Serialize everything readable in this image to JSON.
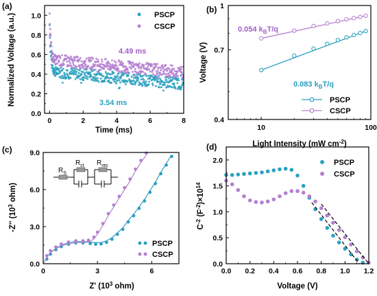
{
  "colors": {
    "pscp": "#2aa0c0",
    "cscp": "#b47fd0",
    "fit": "#000000"
  },
  "chart_data": [
    {
      "panel": "(a)",
      "type": "scatter",
      "xlabel": "Time (ms)",
      "ylabel": "Normalized Voltage (a.u.)",
      "xlim": [
        -0.3,
        8
      ],
      "ylim": [
        0,
        1.1
      ],
      "xticks": [
        "0",
        "2",
        "4",
        "6",
        "8"
      ],
      "yticks": [
        "0.0",
        "0.2",
        "0.4",
        "0.6",
        "0.8",
        "1.0"
      ],
      "legend": [
        "PSCP",
        "CSCP"
      ],
      "legend_position": "top-right",
      "annotations": [
        "4.49 ms",
        "3.54 ms"
      ],
      "series": [
        {
          "name": "PSCP",
          "lifetime_ms": 3.54,
          "start": 0.9,
          "plateau": 0.31,
          "level_at_0_5ms": 0.42,
          "level_at_8ms": 0.3
        },
        {
          "name": "CSCP",
          "lifetime_ms": 4.49,
          "start": 1.0,
          "plateau": 0.44,
          "level_at_0_5ms": 0.54,
          "level_at_8ms": 0.42
        }
      ]
    },
    {
      "panel": "(b)",
      "type": "line",
      "xlabel": "Light Intensity (mW cm",
      "xlabel_sup": "-2",
      "xlabel_end": ")",
      "ylabel": "Voltage (V)",
      "xscale": "log",
      "yscale": "log",
      "xlim": [
        5,
        100
      ],
      "ylim": [
        0.4,
        1.0
      ],
      "xticks": [
        "10",
        "100"
      ],
      "yticks": [
        "0.4",
        "0.7",
        "1"
      ],
      "legend": [
        "PSCP",
        "CSCP"
      ],
      "legend_position": "bottom-right",
      "annotations": {
        "cscp_slope": {
          "value": "0.054 k",
          "sub": "B",
          "unit": "T/q"
        },
        "pscp_slope": {
          "value": "0.083 k",
          "sub": "B",
          "unit": "T/q"
        }
      },
      "series": [
        {
          "name": "PSCP",
          "x": [
            10,
            20,
            30,
            40,
            50,
            60,
            70,
            80,
            90
          ],
          "y": [
            0.595,
            0.668,
            0.707,
            0.735,
            0.757,
            0.774,
            0.789,
            0.802,
            0.814
          ]
        },
        {
          "name": "CSCP",
          "x": [
            10,
            20,
            30,
            40,
            50,
            60,
            70,
            80,
            90
          ],
          "y": [
            0.768,
            0.817,
            0.848,
            0.866,
            0.882,
            0.895,
            0.904,
            0.913,
            0.921
          ]
        }
      ]
    },
    {
      "panel": "(c)",
      "type": "scatter",
      "xlabel": "Z' (10",
      "xlabel_sup": "3",
      "xlabel_end": " ohm)",
      "ylabel": "-Z'' (10",
      "ylabel_sup": "3",
      "ylabel_end": " ohm)",
      "xlim": [
        0,
        7.5
      ],
      "ylim": [
        0,
        9
      ],
      "xticks": [
        "0",
        "3",
        "6"
      ],
      "yticks": [
        "0.0",
        "3.0",
        "6.0",
        "9.0"
      ],
      "legend": [
        "PSCP",
        "CSCP"
      ],
      "legend_position": "bottom-right",
      "inset_circuit": [
        "R",
        "S",
        "R",
        "ct",
        "R",
        "rec"
      ],
      "series": [
        {
          "name": "PSCP",
          "x": [
            0.05,
            0.2,
            0.4,
            0.7,
            1.0,
            1.4,
            1.8,
            2.2,
            2.6,
            2.9,
            3.2,
            3.5,
            3.8,
            4.1,
            4.4,
            4.7,
            5.0,
            5.3,
            5.6,
            5.9,
            6.2,
            6.5,
            6.8,
            7.1
          ],
          "y": [
            0.1,
            0.5,
            0.9,
            1.25,
            1.5,
            1.7,
            1.8,
            1.8,
            1.75,
            1.7,
            1.72,
            1.85,
            2.1,
            2.5,
            2.9,
            3.5,
            4.0,
            4.6,
            5.2,
            5.9,
            6.6,
            7.4,
            8.1,
            8.8
          ]
        },
        {
          "name": "CSCP",
          "x": [
            0.05,
            0.2,
            0.4,
            0.7,
            1.0,
            1.4,
            1.8,
            2.2,
            2.5,
            2.8,
            3.0,
            3.3,
            3.6,
            3.9,
            4.2,
            4.5,
            4.8,
            5.1,
            5.4,
            5.7
          ],
          "y": [
            0.1,
            0.5,
            0.9,
            1.2,
            1.45,
            1.6,
            1.7,
            1.7,
            1.75,
            2.0,
            2.4,
            3.1,
            3.9,
            4.6,
            5.3,
            6.0,
            6.7,
            7.5,
            8.2,
            8.8
          ]
        }
      ]
    },
    {
      "panel": "(d)",
      "type": "line",
      "xlabel": "Voltage (V)",
      "ylabel": "C",
      "ylabel_sup1": "-2",
      "ylabel_mid": " (F",
      "ylabel_sup2": "-2",
      "ylabel_mid2": ")×10",
      "ylabel_sup3": "14",
      "xlim": [
        0,
        1.2
      ],
      "ylim": [
        0,
        2.25
      ],
      "xticks": [
        "0.0",
        "0.2",
        "0.4",
        "0.6",
        "0.8",
        "1.0",
        "1.2"
      ],
      "yticks": [
        "0.0",
        "0.5",
        "1.0",
        "1.5",
        "2.0"
      ],
      "legend": [
        "PSCP",
        "CSCP"
      ],
      "legend_position": "top-right",
      "series": [
        {
          "name": "PSCP",
          "x": [
            0,
            0.05,
            0.1,
            0.15,
            0.2,
            0.25,
            0.3,
            0.35,
            0.4,
            0.45,
            0.5,
            0.55,
            0.6,
            0.65,
            0.7,
            0.75,
            0.8,
            0.85,
            0.9,
            0.95,
            1.0,
            1.05,
            1.1,
            1.15
          ],
          "y": [
            1.71,
            1.71,
            1.72,
            1.73,
            1.74,
            1.75,
            1.76,
            1.78,
            1.8,
            1.82,
            1.83,
            1.81,
            1.7,
            1.5,
            1.27,
            1.05,
            0.86,
            0.69,
            0.54,
            0.41,
            0.29,
            0.18,
            0.08,
            0.02
          ]
        },
        {
          "name": "CSCP",
          "x": [
            0,
            0.05,
            0.1,
            0.15,
            0.2,
            0.25,
            0.3,
            0.35,
            0.4,
            0.45,
            0.5,
            0.55,
            0.6,
            0.65,
            0.7,
            0.75,
            0.8,
            0.85,
            0.9,
            0.95,
            1.0,
            1.05,
            1.1,
            1.15,
            1.2
          ],
          "y": [
            1.6,
            1.53,
            1.42,
            1.3,
            1.22,
            1.19,
            1.18,
            1.2,
            1.24,
            1.3,
            1.36,
            1.4,
            1.4,
            1.37,
            1.3,
            1.2,
            1.07,
            0.93,
            0.79,
            0.65,
            0.51,
            0.37,
            0.24,
            0.12,
            0.02
          ]
        }
      ],
      "fits": [
        {
          "name": "PSCP",
          "x": [
            0.72,
            1.12
          ],
          "y": [
            1.18,
            0.0
          ]
        },
        {
          "name": "CSCP",
          "x": [
            0.8,
            1.2
          ],
          "y": [
            1.15,
            0.0
          ]
        }
      ]
    }
  ]
}
